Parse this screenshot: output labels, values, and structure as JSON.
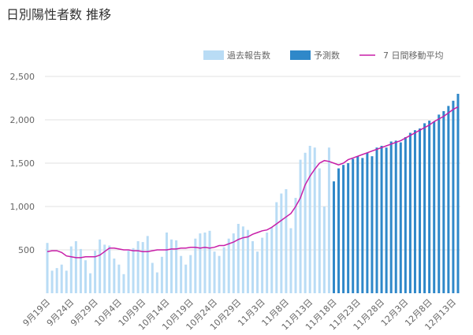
{
  "chart_data": {
    "type": "bar-line",
    "title": "日別陽性者数 推移",
    "categories": [
      "9月19日",
      null,
      null,
      null,
      null,
      "9月24日",
      null,
      null,
      null,
      null,
      "9月29日",
      null,
      null,
      null,
      null,
      "10月4日",
      null,
      null,
      null,
      null,
      "10月9日",
      null,
      null,
      null,
      null,
      "10月14日",
      null,
      null,
      null,
      null,
      "10月19日",
      null,
      null,
      null,
      null,
      "10月24日",
      null,
      null,
      null,
      null,
      "10月29日",
      null,
      null,
      null,
      null,
      "11月3日",
      null,
      null,
      null,
      null,
      "11月8日",
      null,
      null,
      null,
      null,
      "11月13日",
      null,
      null,
      null,
      null,
      "11月18日",
      null,
      null,
      null,
      null,
      "11月23日",
      null,
      null,
      null,
      null,
      "11月28日",
      null,
      null,
      null,
      null,
      "12月3日",
      null,
      null,
      null,
      null,
      "12月8日",
      null,
      null,
      null,
      null,
      "12月13日",
      null
    ],
    "series": [
      {
        "name": "過去報告数",
        "color": "#b9dcf5",
        "kind": "bar",
        "values": [
          580,
          260,
          290,
          330,
          260,
          540,
          600,
          510,
          380,
          230,
          490,
          620,
          560,
          550,
          400,
          330,
          220,
          490,
          520,
          600,
          590,
          660,
          350,
          240,
          420,
          700,
          620,
          610,
          430,
          330,
          440,
          630,
          690,
          700,
          720,
          480,
          430,
          530,
          630,
          690,
          800,
          770,
          730,
          600,
          480,
          640,
          700,
          760,
          1050,
          1150,
          1200,
          750,
          1100,
          1540,
          1620,
          1700,
          1680,
          1440,
          1000,
          1680,
          null,
          null,
          null,
          null,
          null,
          null,
          null,
          null,
          null,
          null,
          null,
          null,
          null,
          null,
          null,
          null,
          null,
          null,
          null,
          null,
          null,
          null,
          null,
          null,
          null,
          null,
          null
        ]
      },
      {
        "name": "予測数",
        "color": "#2f88c9",
        "kind": "bar",
        "values": [
          null,
          null,
          null,
          null,
          null,
          null,
          null,
          null,
          null,
          null,
          null,
          null,
          null,
          null,
          null,
          null,
          null,
          null,
          null,
          null,
          null,
          null,
          null,
          null,
          null,
          null,
          null,
          null,
          null,
          null,
          null,
          null,
          null,
          null,
          null,
          null,
          null,
          null,
          null,
          null,
          null,
          null,
          null,
          null,
          null,
          null,
          null,
          null,
          null,
          null,
          null,
          null,
          null,
          null,
          null,
          null,
          null,
          null,
          null,
          null,
          1290,
          1440,
          1480,
          1500,
          1550,
          1580,
          1560,
          1620,
          1580,
          1680,
          1700,
          1680,
          1750,
          1760,
          1740,
          1800,
          1850,
          1880,
          1900,
          1960,
          1990,
          1980,
          2060,
          2100,
          2160,
          2220,
          2300
        ]
      },
      {
        "name": "7 日間移動平均",
        "color": "#c81ea8",
        "kind": "line",
        "values": [
          480,
          490,
          490,
          470,
          430,
          420,
          410,
          410,
          420,
          420,
          420,
          440,
          480,
          520,
          520,
          510,
          500,
          500,
          490,
          490,
          480,
          480,
          490,
          500,
          500,
          500,
          510,
          510,
          520,
          520,
          530,
          530,
          520,
          530,
          520,
          530,
          550,
          550,
          570,
          590,
          620,
          640,
          650,
          680,
          700,
          720,
          730,
          760,
          800,
          840,
          880,
          920,
          1000,
          1100,
          1250,
          1350,
          1430,
          1500,
          1530,
          1520,
          1500,
          1480,
          1500,
          1540,
          1560,
          1580,
          1600,
          1620,
          1640,
          1660,
          1680,
          1700,
          1720,
          1740,
          1760,
          1790,
          1820,
          1850,
          1880,
          1910,
          1940,
          1980,
          2010,
          2040,
          2080,
          2120,
          2150
        ]
      }
    ],
    "ylim": [
      0,
      2500
    ],
    "yticks": [
      500,
      {
        "value": 1000,
        "label": "1,000"
      },
      {
        "value": 1500,
        "label": "1,500"
      },
      {
        "value": 2000,
        "label": "2,000"
      },
      {
        "value": 2500,
        "label": "2,500"
      }
    ],
    "grid": true
  }
}
